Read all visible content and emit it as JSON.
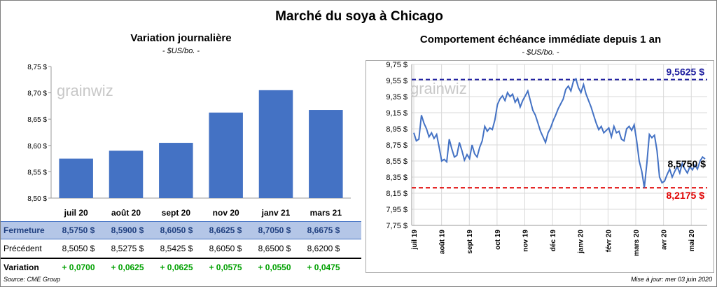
{
  "title": "Marché du soya à Chicago",
  "left_chart": {
    "title": "Variation journalière",
    "unit": "- $US/bo. -"
  },
  "right_chart": {
    "title": "Comportement  échéance immédiate depuis 1 an",
    "unit": "- $US/bo. -",
    "high_label": "9,5625 $",
    "low_label": "8,2175 $",
    "last_label": "8,5750 $"
  },
  "watermark": "grainwiz",
  "table": {
    "row_labels": {
      "close": "Fermeture",
      "prev": "Précédent",
      "var": "Variation"
    },
    "close": [
      "8,5750  $",
      "8,5900  $",
      "8,6050  $",
      "8,6625  $",
      "8,7050  $",
      "8,6675  $"
    ],
    "prev": [
      "8,5050  $",
      "8,5275  $",
      "8,5425  $",
      "8,6050  $",
      "8,6500  $",
      "8,6200  $"
    ],
    "var": [
      "+ 0,0700",
      "+ 0,0625",
      "+ 0,0625",
      "+ 0,0575",
      "+ 0,0550",
      "+ 0,0475"
    ]
  },
  "footer": {
    "source": "Source: CME Group",
    "updated": "Mise à jour: mer 03 juin 2020"
  },
  "colors": {
    "bar": "#4472c4",
    "line": "#4472c4",
    "high": "#2020a0",
    "low": "#e00000",
    "close_row": "#b4c6e7",
    "variation": "#00a000"
  },
  "chart_data": [
    {
      "type": "bar",
      "title": "Variation journalière",
      "categories": [
        "juil 20",
        "août 20",
        "sept 20",
        "nov 20",
        "janv 21",
        "mars 21"
      ],
      "values": [
        8.575,
        8.59,
        8.605,
        8.6625,
        8.705,
        8.6675
      ],
      "ylim": [
        8.5,
        8.75
      ],
      "yticks": [
        "8,50 $",
        "8,55 $",
        "8,60 $",
        "8,65 $",
        "8,70 $",
        "8,75 $"
      ],
      "yticks_values": [
        8.5,
        8.55,
        8.6,
        8.65,
        8.7,
        8.75
      ],
      "grid": false
    },
    {
      "type": "line",
      "title": "Comportement  échéance immédiate depuis 1 an",
      "ylim": [
        7.75,
        9.75
      ],
      "yticks": [
        "7,75 $",
        "7,95 $",
        "8,15 $",
        "8,35 $",
        "8,55 $",
        "8,75 $",
        "8,95 $",
        "9,15 $",
        "9,35 $",
        "9,55 $",
        "9,75 $"
      ],
      "yticks_values": [
        7.75,
        7.95,
        8.15,
        8.35,
        8.55,
        8.75,
        8.95,
        9.15,
        9.35,
        9.55,
        9.75
      ],
      "xticks": [
        "juil 19",
        "août 19",
        "sept 19",
        "oct 19",
        "nov 19",
        "déc 19",
        "janv 20",
        "févr 20",
        "mars 20",
        "avr 20",
        "mai 20"
      ],
      "high": 9.5625,
      "low": 8.2175,
      "last": 8.575,
      "grid": true,
      "values": [
        8.9,
        8.8,
        8.82,
        9.12,
        9.02,
        8.95,
        8.85,
        8.9,
        8.83,
        8.88,
        8.72,
        8.55,
        8.57,
        8.54,
        8.82,
        8.7,
        8.6,
        8.62,
        8.78,
        8.68,
        8.56,
        8.63,
        8.58,
        8.75,
        8.64,
        8.6,
        8.72,
        8.8,
        8.98,
        8.92,
        8.96,
        8.94,
        9.06,
        9.25,
        9.32,
        9.36,
        9.3,
        9.4,
        9.35,
        9.38,
        9.28,
        9.33,
        9.22,
        9.3,
        9.36,
        9.42,
        9.3,
        9.18,
        9.12,
        9.02,
        8.92,
        8.85,
        8.78,
        8.9,
        8.96,
        9.05,
        9.12,
        9.2,
        9.26,
        9.32,
        9.44,
        9.48,
        9.42,
        9.54,
        9.57,
        9.46,
        9.4,
        9.5,
        9.38,
        9.3,
        9.22,
        9.12,
        9.02,
        8.94,
        8.98,
        8.9,
        8.93,
        8.96,
        8.85,
        8.98,
        8.9,
        8.92,
        8.82,
        8.8,
        8.95,
        8.98,
        8.93,
        9.0,
        8.8,
        8.55,
        8.42,
        8.2175,
        8.52,
        8.88,
        8.84,
        8.87,
        8.68,
        8.35,
        8.28,
        8.3,
        8.38,
        8.45,
        8.35,
        8.42,
        8.48,
        8.4,
        8.52,
        8.45,
        8.4,
        8.48,
        8.44,
        8.5,
        8.45,
        8.55,
        8.6,
        8.575
      ]
    }
  ]
}
